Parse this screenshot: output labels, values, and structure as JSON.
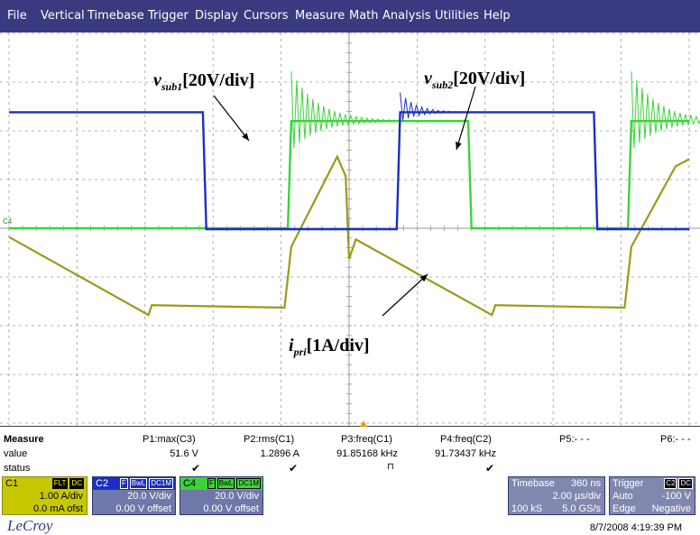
{
  "menu": [
    "File",
    "Vertical",
    "Timebase",
    "Trigger",
    "Display",
    "Cursors",
    "Measure",
    "Math",
    "Analysis",
    "Utilities",
    "Help"
  ],
  "colors": {
    "c1": "#9a9a18",
    "c2": "#1a2fc4",
    "c4": "#3ad43a",
    "menubar": "#3a3a80"
  },
  "annotations": {
    "vsub1_var": "v",
    "vsub1_sub": "sub1",
    "vsub1_text": "[20V/div]",
    "vsub2_var": "v",
    "vsub2_sub": "sub2",
    "vsub2_text": "[20V/div]",
    "ipri_var": "i",
    "ipri_sub": "pri",
    "ipri_text": "[1A/div]"
  },
  "channel_marker": "C4",
  "measure": {
    "title": "Measure",
    "row_value": "value",
    "row_status": "status",
    "params": [
      {
        "head": "P1:max(C3)",
        "value": "51.6 V",
        "status": "✔"
      },
      {
        "head": "P2:rms(C1)",
        "value": "1.2896 A",
        "status": "✔"
      },
      {
        "head": "P3:freq(C1)",
        "value": "91.85168 kHz",
        "status": "⊓"
      },
      {
        "head": "P4:freq(C2)",
        "value": "91.73437 kHz",
        "status": "✔"
      },
      {
        "head": "P5:- - -",
        "value": "",
        "status": ""
      },
      {
        "head": "P6:- - -",
        "value": "",
        "status": ""
      }
    ]
  },
  "channels": {
    "c1": {
      "name": "C1",
      "tags": [
        "FLT",
        "DC"
      ],
      "vdiv": "1.00 A/div",
      "offset": "0.0 mA ofst"
    },
    "c2": {
      "name": "C2",
      "tags": [
        "F",
        "BwL",
        "DC1M"
      ],
      "vdiv": "20.0 V/div",
      "offset": "0.00 V offset"
    },
    "c4": {
      "name": "C4",
      "tags": [
        "F",
        "BwL",
        "DC1M"
      ],
      "vdiv": "20.0 V/div",
      "offset": "0.00 V offset"
    }
  },
  "timebase": {
    "label": "Timebase",
    "delay": "360 ns",
    "tdiv": "2.00 µs/div",
    "samples": "100 kS",
    "rate": "5.0 GS/s"
  },
  "trigger": {
    "label": "Trigger",
    "source": "C2",
    "coupling": "DC",
    "mode": "Auto",
    "level": "-100 V",
    "type": "Edge",
    "slope": "Negative"
  },
  "logo": "LeCroy",
  "timestamp": "8/7/2008 4:19:39 PM",
  "chart_data": {
    "type": "line",
    "x_unit": "µs",
    "x_range": [
      -10,
      10
    ],
    "series": [
      {
        "name": "C2",
        "unit": "V",
        "points": [
          [
            -10,
            48
          ],
          [
            -4.3,
            48
          ],
          [
            -4.2,
            0
          ],
          [
            1.4,
            0
          ],
          [
            1.5,
            48
          ],
          [
            7.2,
            48
          ],
          [
            7.3,
            0
          ],
          [
            10,
            0
          ]
        ]
      },
      {
        "name": "C4",
        "unit": "V",
        "points": [
          [
            -10,
            0
          ],
          [
            -1.8,
            0
          ],
          [
            -1.7,
            44
          ],
          [
            3.5,
            44
          ],
          [
            3.6,
            0
          ],
          [
            8.2,
            0
          ],
          [
            8.3,
            44
          ],
          [
            10,
            44
          ]
        ]
      },
      {
        "name": "C1",
        "unit": "A",
        "points": [
          [
            -10,
            -0.05
          ],
          [
            -5.9,
            -1.65
          ],
          [
            -5.8,
            -1.45
          ],
          [
            -1.9,
            -1.5
          ],
          [
            -1.7,
            -0.25
          ],
          [
            -0.35,
            1.6
          ],
          [
            -0.1,
            1.2
          ],
          [
            0,
            -0.5
          ],
          [
            0.2,
            -0.1
          ],
          [
            4.2,
            -1.65
          ],
          [
            4.3,
            -1.45
          ],
          [
            8.1,
            -1.5
          ],
          [
            8.3,
            -0.25
          ],
          [
            9.6,
            1.4
          ],
          [
            10,
            1.55
          ]
        ]
      }
    ]
  }
}
